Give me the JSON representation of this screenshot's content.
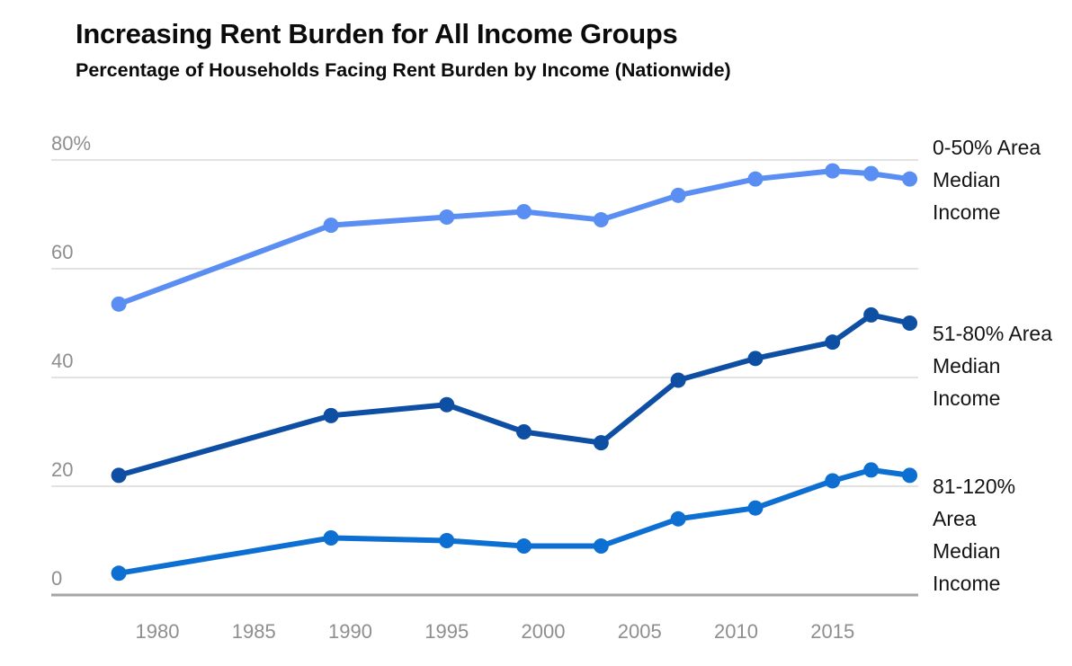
{
  "title": "Increasing Rent Burden for All Income Groups",
  "subtitle": "Percentage of Households Facing Rent Burden by Income (Nationwide)",
  "colors": {
    "series_low_income": "#5b8ef2",
    "series_mid_income": "#0e4fa4",
    "series_moderate_income": "#0e6fd2",
    "gridline": "#d9d9d9",
    "zero_line": "#a6a6a6",
    "tick_text": "#8e8e8e",
    "label_text": "#141414",
    "background": "#ffffff"
  },
  "chart_data": {
    "type": "line",
    "title": "Increasing Rent Burden for All Income Groups",
    "subtitle": "Percentage of Households Facing Rent Burden by Income (Nationwide)",
    "xlabel": "",
    "ylabel": "",
    "xlim": [
      1976,
      2021
    ],
    "ylim": [
      0,
      80
    ],
    "grid": "horizontal",
    "legend_position": "right-of-line-ends",
    "marker": "circle",
    "x": [
      1978,
      1989,
      1995,
      1999,
      2003,
      2007,
      2011,
      2015,
      2017,
      2019
    ],
    "series": [
      {
        "name": "0-50% Area Median Income",
        "label_lines": [
          "0-50% Area",
          "Median",
          "Income"
        ],
        "color": "#5b8ef2",
        "values": [
          53.5,
          68,
          69.5,
          70.5,
          69,
          73.5,
          76.5,
          78,
          77.5,
          76.5
        ]
      },
      {
        "name": "51-80% Area Median Income",
        "label_lines": [
          "51-80% Area",
          "Median",
          "Income"
        ],
        "color": "#0e4fa4",
        "values": [
          22,
          33,
          35,
          30,
          28,
          39.5,
          43.5,
          46.5,
          51.5,
          50
        ]
      },
      {
        "name": "81-120% Area Median Income",
        "label_lines": [
          "81-120%",
          "Area",
          "Median",
          "Income"
        ],
        "color": "#0e6fd2",
        "values": [
          4,
          10.5,
          10,
          9,
          9,
          14,
          16,
          21,
          23,
          22
        ]
      }
    ],
    "y_axis": {
      "ticks": [
        {
          "value": 80,
          "label": "80%"
        },
        {
          "value": 60,
          "label": "60"
        },
        {
          "value": 40,
          "label": "40"
        },
        {
          "value": 20,
          "label": "20"
        },
        {
          "value": 0,
          "label": "0"
        }
      ]
    },
    "x_axis": {
      "ticks": [
        {
          "value": 1980,
          "label": "1980"
        },
        {
          "value": 1985,
          "label": "1985"
        },
        {
          "value": 1990,
          "label": "1990"
        },
        {
          "value": 1995,
          "label": "1995"
        },
        {
          "value": 2000,
          "label": "2000"
        },
        {
          "value": 2005,
          "label": "2005"
        },
        {
          "value": 2010,
          "label": "2010"
        },
        {
          "value": 2015,
          "label": "2015"
        }
      ]
    }
  }
}
